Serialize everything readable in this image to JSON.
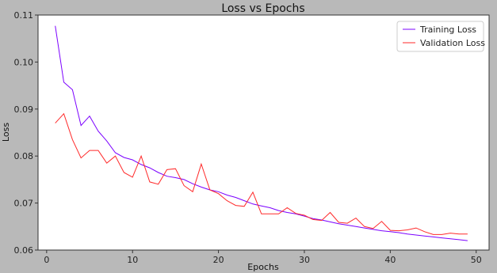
{
  "chart_data": {
    "type": "line",
    "title": "Loss vs Epochs",
    "xlabel": "Epochs",
    "ylabel": "Loss",
    "xlim": [
      -1,
      51.5
    ],
    "ylim": [
      0.06,
      0.11
    ],
    "xticks": [
      0,
      10,
      20,
      30,
      40,
      50
    ],
    "yticks": [
      0.06,
      0.07,
      0.08,
      0.09,
      0.1,
      0.11
    ],
    "ytick_labels": [
      "0.06",
      "0.07",
      "0.08",
      "0.09",
      "0.10",
      "0.11"
    ],
    "grid": false,
    "legend_position": "top-right",
    "x": [
      1,
      2,
      3,
      4,
      5,
      6,
      7,
      8,
      9,
      10,
      11,
      12,
      13,
      14,
      15,
      16,
      17,
      18,
      19,
      20,
      21,
      22,
      23,
      24,
      25,
      26,
      27,
      28,
      29,
      30,
      31,
      32,
      33,
      34,
      35,
      36,
      37,
      38,
      39,
      40,
      41,
      42,
      43,
      44,
      45,
      46,
      47,
      48,
      49
    ],
    "series": [
      {
        "name": "Training Loss",
        "color": "#7b00ff",
        "values": [
          0.1077,
          0.0957,
          0.0941,
          0.0865,
          0.0885,
          0.0853,
          0.0832,
          0.0807,
          0.0797,
          0.0792,
          0.0782,
          0.0775,
          0.0765,
          0.0757,
          0.0754,
          0.075,
          0.0741,
          0.0734,
          0.0728,
          0.0724,
          0.0717,
          0.0712,
          0.0705,
          0.0698,
          0.0694,
          0.069,
          0.0684,
          0.068,
          0.0677,
          0.0672,
          0.0667,
          0.0664,
          0.066,
          0.0656,
          0.0653,
          0.065,
          0.0647,
          0.0644,
          0.0641,
          0.0639,
          0.0637,
          0.0634,
          0.0632,
          0.063,
          0.0628,
          0.0626,
          0.0624,
          0.0622,
          0.062
        ]
      },
      {
        "name": "Validation Loss",
        "color": "#ff2a2a",
        "values": [
          0.087,
          0.089,
          0.0835,
          0.0796,
          0.0812,
          0.0812,
          0.0785,
          0.08,
          0.0765,
          0.0755,
          0.08,
          0.0745,
          0.074,
          0.0771,
          0.0773,
          0.0737,
          0.0724,
          0.0783,
          0.0728,
          0.072,
          0.0705,
          0.0695,
          0.0693,
          0.0723,
          0.0677,
          0.0677,
          0.0677,
          0.069,
          0.0678,
          0.0674,
          0.0665,
          0.0663,
          0.068,
          0.0659,
          0.0657,
          0.0668,
          0.065,
          0.0646,
          0.0661,
          0.0642,
          0.0641,
          0.0643,
          0.0647,
          0.0639,
          0.0633,
          0.0633,
          0.0636,
          0.0634,
          0.0634
        ]
      }
    ]
  }
}
